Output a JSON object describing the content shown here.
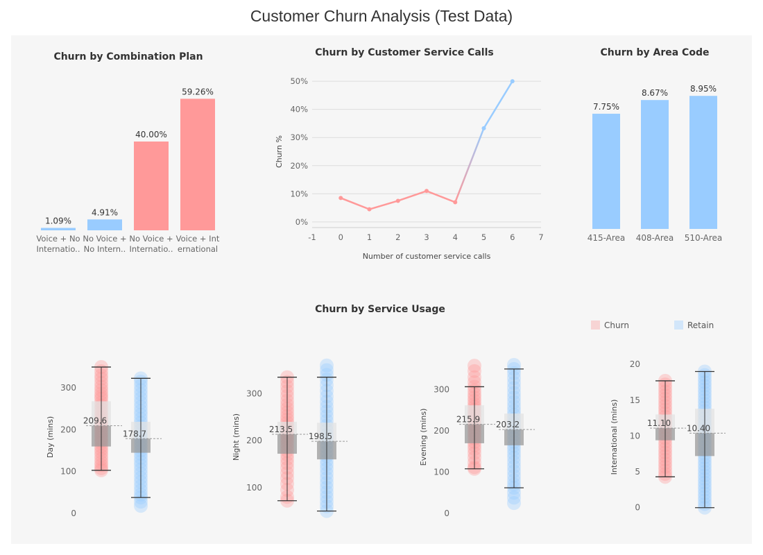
{
  "page": {
    "title": "Customer Churn Analysis (Test Data)"
  },
  "colors": {
    "churn": "#ff9999",
    "retain": "#99ccff",
    "churn_light": "#f7d4d4",
    "retain_light": "#d2e6fa",
    "grid": "#dcdcdc",
    "axis_text": "#666666"
  },
  "panels": {
    "plan": {
      "title": "Churn by Combination Plan"
    },
    "calls": {
      "title": "Churn by Customer Service Calls"
    },
    "area": {
      "title": "Churn by Area Code"
    },
    "usage": {
      "title": "Churn by Service Usage"
    }
  },
  "legend": {
    "churn": "Churn",
    "retain": "Retain"
  },
  "chart_data": [
    {
      "id": "plan",
      "type": "bar",
      "title": "Churn by Combination Plan",
      "categories": [
        [
          "Voice + No",
          "Internatio.."
        ],
        [
          "No Voice +",
          "No Intern.."
        ],
        [
          "No Voice +",
          "Internatio.."
        ],
        [
          "Voice + Int",
          "ernational"
        ]
      ],
      "values": [
        1.09,
        4.91,
        40.0,
        59.26
      ],
      "labels": [
        "1.09%",
        "4.91%",
        "40.00%",
        "59.26%"
      ],
      "group": [
        "retain",
        "retain",
        "churn",
        "churn"
      ],
      "ylim": [
        0,
        65
      ]
    },
    {
      "id": "calls",
      "type": "line",
      "title": "Churn by Customer Service Calls",
      "xlabel": "Number of customer service calls",
      "ylabel": "Churn %",
      "x": [
        0,
        1,
        2,
        3,
        4,
        5,
        6
      ],
      "y": [
        8.5,
        4.5,
        7.5,
        11,
        7,
        33.3,
        50
      ],
      "xlim": [
        -1,
        7
      ],
      "ylim": [
        -2,
        52
      ],
      "xticks": [
        "-1",
        "0",
        "1",
        "2",
        "3",
        "4",
        "5",
        "6",
        "7"
      ],
      "yticks": [
        "0%",
        "10%",
        "20%",
        "30%",
        "40%",
        "50%"
      ],
      "grid": true
    },
    {
      "id": "area",
      "type": "bar",
      "title": "Churn by Area Code",
      "categories": [
        "415-Area",
        "408-Area",
        "510-Area"
      ],
      "values": [
        7.75,
        8.67,
        8.95
      ],
      "labels": [
        "7.75%",
        "8.67%",
        "8.95%"
      ],
      "ylim": [
        0,
        10.5
      ]
    },
    {
      "id": "day",
      "type": "scatter",
      "ylabel": "Day (mins)",
      "ylim": [
        0,
        365
      ],
      "yticks": [
        "0",
        "100",
        "200",
        "300"
      ],
      "groups": [
        {
          "name": "Churn",
          "median": 209.6,
          "median_label": "209.6",
          "q1": 160,
          "q3": 268,
          "whisker_low": 103,
          "whisker_high": 350,
          "points": [
            350,
            340,
            330,
            322,
            312,
            303,
            295,
            287,
            280,
            274,
            265,
            258,
            250,
            242,
            235,
            228,
            222,
            215,
            210,
            204,
            198,
            192,
            186,
            180,
            174,
            168,
            160,
            153,
            146,
            138,
            130,
            122,
            115,
            108,
            103
          ]
        },
        {
          "name": "Retain",
          "median": 178.7,
          "median_label": "178.7",
          "q1": 145,
          "q3": 219,
          "whisker_low": 38,
          "whisker_high": 323,
          "points": [
            323,
            315,
            305,
            295,
            285,
            275,
            265,
            255,
            245,
            236,
            226,
            217,
            208,
            199,
            190,
            182,
            174,
            166,
            158,
            150,
            142,
            133,
            124,
            115,
            105,
            95,
            85,
            75,
            65,
            55,
            45,
            38,
            28,
            18
          ]
        }
      ]
    },
    {
      "id": "night",
      "type": "scatter",
      "ylabel": "Night (mins)",
      "ylim": [
        45,
        370
      ],
      "yticks": [
        "100",
        "200",
        "300"
      ],
      "groups": [
        {
          "name": "Churn",
          "median": 213.5,
          "median_label": "213.5",
          "q1": 172,
          "q3": 240,
          "whisker_low": 72,
          "whisker_high": 335,
          "points": [
            335,
            325,
            315,
            305,
            295,
            285,
            276,
            268,
            260,
            252,
            245,
            238,
            231,
            224,
            217,
            211,
            205,
            199,
            192,
            185,
            178,
            170,
            161,
            152,
            142,
            131,
            120,
            108,
            95,
            80,
            72
          ]
        },
        {
          "name": "Retain",
          "median": 198.5,
          "median_label": "198.5",
          "q1": 160,
          "q3": 238,
          "whisker_low": 50,
          "whisker_high": 335,
          "points": [
            360,
            350,
            340,
            330,
            318,
            306,
            294,
            283,
            272,
            262,
            252,
            242,
            232,
            222,
            212,
            203,
            194,
            185,
            176,
            167,
            158,
            149,
            140,
            130,
            120,
            110,
            100,
            90,
            80,
            70,
            60,
            50
          ]
        }
      ]
    },
    {
      "id": "evening",
      "type": "scatter",
      "ylabel": "Evening (mins)",
      "ylim": [
        0,
        370
      ],
      "yticks": [
        "0",
        "100",
        "200",
        "300"
      ],
      "groups": [
        {
          "name": "Churn",
          "median": 215.9,
          "median_label": "215.9",
          "q1": 170,
          "q3": 262,
          "whisker_low": 108,
          "whisker_high": 307,
          "points": [
            358,
            345,
            330,
            318,
            307,
            298,
            289,
            281,
            273,
            265,
            258,
            251,
            244,
            237,
            230,
            223,
            216,
            209,
            202,
            195,
            188,
            181,
            173,
            165,
            156,
            146,
            135,
            123,
            112,
            108
          ]
        },
        {
          "name": "Retain",
          "median": 203.2,
          "median_label": "203.2",
          "q1": 165,
          "q3": 242,
          "whisker_low": 62,
          "whisker_high": 350,
          "points": [
            360,
            350,
            340,
            328,
            316,
            304,
            292,
            281,
            270,
            259,
            249,
            239,
            229,
            219,
            209,
            200,
            191,
            182,
            173,
            164,
            155,
            145,
            135,
            124,
            113,
            102,
            91,
            80,
            70,
            62,
            50,
            38,
            25
          ]
        }
      ]
    },
    {
      "id": "international",
      "type": "scatter",
      "ylabel": "International (mins)",
      "ylim": [
        -0.8,
        20.5
      ],
      "yticks": [
        "0",
        "5",
        "10",
        "15",
        "20"
      ],
      "groups": [
        {
          "name": "Churn",
          "median": 11.1,
          "median_label": "11.10",
          "q1": 9.4,
          "q3": 13.0,
          "whisker_low": 4.3,
          "whisker_high": 17.7,
          "points": [
            17.7,
            17.2,
            16.7,
            16.2,
            15.7,
            15.2,
            14.7,
            14.2,
            13.7,
            13.2,
            12.7,
            12.2,
            11.7,
            11.2,
            10.7,
            10.2,
            9.7,
            9.2,
            8.7,
            8.2,
            7.7,
            7.2,
            6.7,
            6.2,
            5.7,
            5.2,
            4.7,
            4.3
          ]
        },
        {
          "name": "Retain",
          "median": 10.4,
          "median_label": "10.40",
          "q1": 7.2,
          "q3": 13.8,
          "whisker_low": 0,
          "whisker_high": 19,
          "points": [
            19,
            18.5,
            18,
            17.5,
            17,
            16.5,
            16,
            15.5,
            15,
            14.5,
            14,
            13.5,
            13,
            12.5,
            12,
            11.5,
            11,
            10.5,
            10,
            9.5,
            9,
            8.5,
            8,
            7.5,
            7,
            6.5,
            6,
            5.5,
            5,
            4.5,
            4,
            3.5,
            3,
            2.5,
            2,
            1.5,
            1,
            0.5,
            0
          ]
        }
      ]
    }
  ]
}
